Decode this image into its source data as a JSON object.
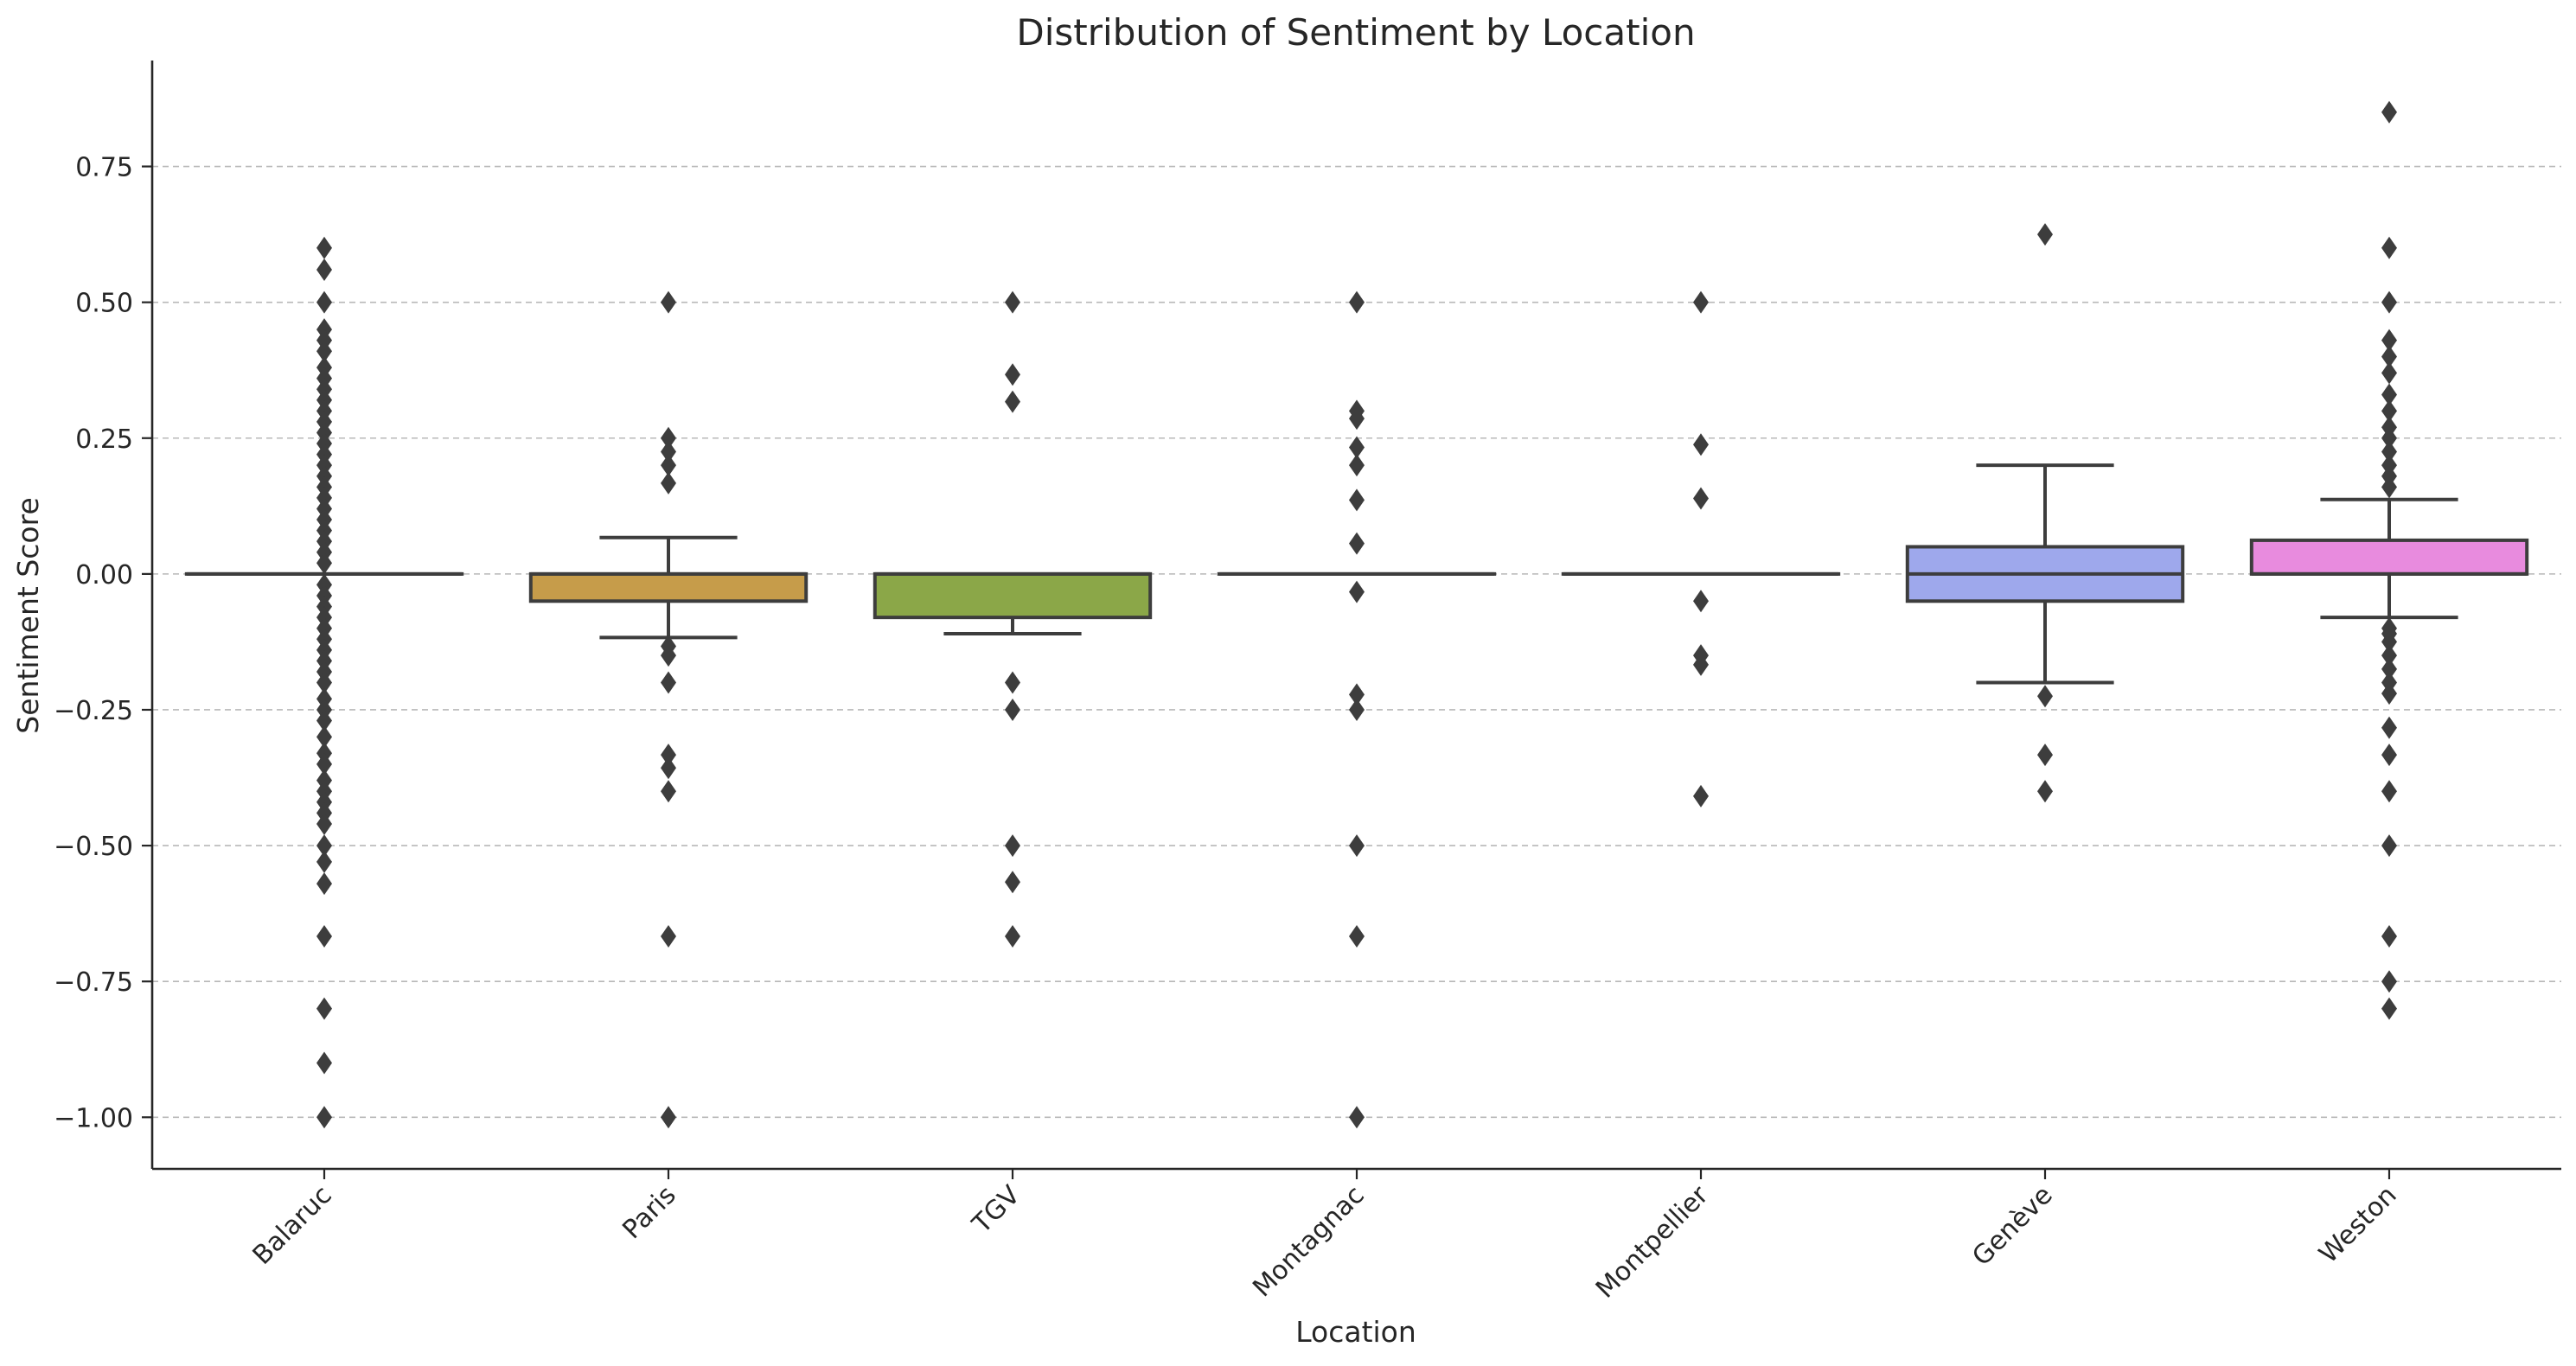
{
  "chart_data": {
    "type": "box",
    "title": "Distribution of Sentiment by Location",
    "xlabel": "Location",
    "ylabel": "Sentiment Score",
    "ylim": [
      -1.095,
      0.945
    ],
    "y_ticks": [
      -1.0,
      -0.75,
      -0.5,
      -0.25,
      0.0,
      0.25,
      0.5,
      0.75
    ],
    "y_tick_labels": [
      "−1.00",
      "−0.75",
      "−0.50",
      "−0.25",
      "0.00",
      "0.25",
      "0.50",
      "0.75"
    ],
    "grid": "horizontal dashed",
    "categories": [
      "Balaruc",
      "Paris",
      "TGV",
      "Montagnac",
      "Montpellier",
      "Genève",
      "Weston"
    ],
    "boxes": [
      {
        "category": "Balaruc",
        "color": "#dc7f7a",
        "q1": 0.0,
        "median": 0.0,
        "q3": 0.0,
        "whisker_low": 0.0,
        "whisker_high": 0.0,
        "fliers": [
          0.6,
          0.56,
          0.5,
          0.45,
          0.43,
          0.41,
          0.38,
          0.36,
          0.34,
          0.32,
          0.3,
          0.28,
          0.26,
          0.24,
          0.22,
          0.2,
          0.18,
          0.16,
          0.14,
          0.12,
          0.1,
          0.08,
          0.06,
          0.04,
          0.02,
          -0.02,
          -0.04,
          -0.06,
          -0.08,
          -0.1,
          -0.12,
          -0.14,
          -0.16,
          -0.18,
          -0.2,
          -0.23,
          -0.25,
          -0.27,
          -0.3,
          -0.33,
          -0.35,
          -0.38,
          -0.4,
          -0.42,
          -0.44,
          -0.46,
          -0.5,
          -0.53,
          -0.57,
          -0.667,
          -0.8,
          -0.9,
          -1.0
        ]
      },
      {
        "category": "Paris",
        "color": "#c69c4a",
        "q1": -0.05,
        "median": 0.0,
        "q3": 0.0,
        "whisker_low": -0.117,
        "whisker_high": 0.067,
        "fliers": [
          0.5,
          0.25,
          0.225,
          0.2,
          0.167,
          -0.133,
          -0.15,
          -0.2,
          -0.333,
          -0.357,
          -0.4,
          -0.667,
          -1.0
        ]
      },
      {
        "category": "TGV",
        "color": "#8ba748",
        "q1": -0.08,
        "median": 0.0,
        "q3": 0.0,
        "whisker_low": -0.11,
        "whisker_high": 0.0,
        "fliers": [
          0.5,
          0.367,
          0.317,
          -0.2,
          -0.25,
          -0.5,
          -0.567,
          -0.667
        ]
      },
      {
        "category": "Montagnac",
        "color": "#57ad84",
        "q1": 0.0,
        "median": 0.0,
        "q3": 0.0,
        "whisker_low": 0.0,
        "whisker_high": 0.0,
        "fliers": [
          0.5,
          0.3,
          0.286,
          0.233,
          0.2,
          0.136,
          0.056,
          -0.033,
          -0.222,
          -0.25,
          -0.5,
          -0.667,
          -1.0
        ]
      },
      {
        "category": "Montpellier",
        "color": "#5aa6b6",
        "q1": 0.0,
        "median": 0.0,
        "q3": 0.0,
        "whisker_low": 0.0,
        "whisker_high": 0.0,
        "fliers": [
          0.5,
          0.238,
          0.139,
          -0.05,
          -0.15,
          -0.167,
          -0.409
        ]
      },
      {
        "category": "Genève",
        "color": "#9ea8ec",
        "q1": -0.05,
        "median": 0.0,
        "q3": 0.05,
        "whisker_low": -0.2,
        "whisker_high": 0.2,
        "fliers": [
          0.625,
          -0.225,
          -0.333,
          -0.4
        ]
      },
      {
        "category": "Weston",
        "color": "#e88bde",
        "q1": 0.0,
        "median": 0.0,
        "q3": 0.062,
        "whisker_low": -0.08,
        "whisker_high": 0.137,
        "fliers": [
          0.85,
          0.6,
          0.5,
          0.43,
          0.4,
          0.37,
          0.33,
          0.3,
          0.27,
          0.25,
          0.225,
          0.2,
          0.18,
          0.16,
          -0.1,
          -0.11,
          -0.125,
          -0.15,
          -0.175,
          -0.2,
          -0.22,
          -0.283,
          -0.333,
          -0.4,
          -0.5,
          -0.667,
          -0.75,
          -0.8
        ]
      }
    ]
  }
}
